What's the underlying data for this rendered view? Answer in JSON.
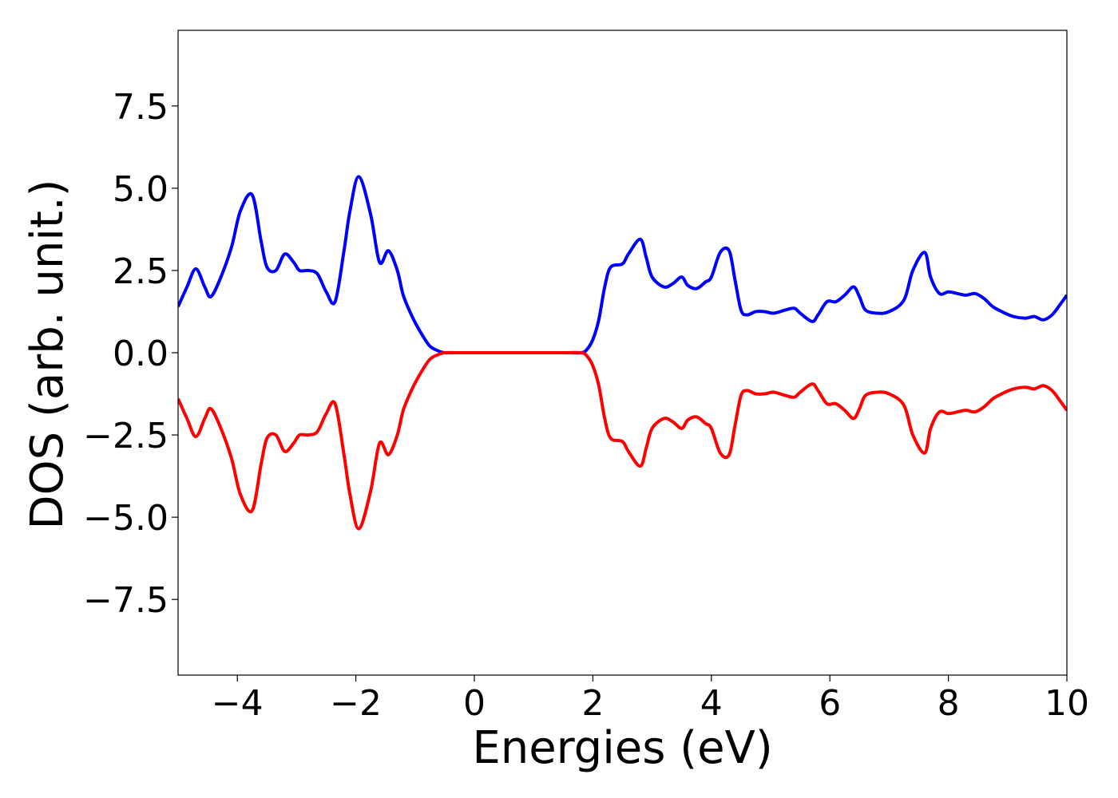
{
  "chart_data": {
    "type": "line",
    "title": "",
    "xlabel": "Energies (eV)",
    "ylabel": "DOS (arb. unit.)",
    "xlim": [
      -5,
      10
    ],
    "ylim": [
      -9.8,
      9.8
    ],
    "xticks": [
      -4,
      -2,
      0,
      2,
      4,
      6,
      8,
      10
    ],
    "yticks": [
      -7.5,
      -5.0,
      -2.5,
      0.0,
      2.5,
      5.0,
      7.5
    ],
    "xtick_labels": [
      "−4",
      "−2",
      "0",
      "2",
      "4",
      "6",
      "8",
      "10"
    ],
    "ytick_labels": [
      "−7.5",
      "−5.0",
      "−2.5",
      "0.0",
      "2.5",
      "5.0",
      "7.5"
    ],
    "grid": false,
    "legend": "none",
    "series": [
      {
        "color": "#0000ff",
        "x": [
          -5.0,
          -4.85,
          -4.7,
          -4.55,
          -4.45,
          -4.3,
          -4.1,
          -3.95,
          -3.75,
          -3.6,
          -3.5,
          -3.35,
          -3.2,
          -3.05,
          -2.95,
          -2.8,
          -2.65,
          -2.5,
          -2.35,
          -2.2,
          -2.1,
          -1.95,
          -1.75,
          -1.6,
          -1.45,
          -1.3,
          -1.2,
          -1.05,
          -0.9,
          -0.75,
          -0.6,
          -0.5,
          -0.3,
          0.0,
          0.5,
          1.0,
          1.5,
          1.8,
          1.9,
          2.0,
          2.1,
          2.2,
          2.3,
          2.5,
          2.6,
          2.8,
          2.9,
          3.0,
          3.2,
          3.35,
          3.5,
          3.6,
          3.75,
          3.9,
          4.0,
          4.15,
          4.3,
          4.4,
          4.5,
          4.6,
          4.75,
          4.9,
          5.05,
          5.25,
          5.4,
          5.5,
          5.7,
          5.8,
          5.95,
          6.1,
          6.25,
          6.4,
          6.5,
          6.6,
          6.8,
          7.0,
          7.25,
          7.4,
          7.6,
          7.7,
          7.85,
          8.0,
          8.15,
          8.3,
          8.45,
          8.6,
          8.75,
          8.9,
          9.1,
          9.3,
          9.45,
          9.6,
          9.75,
          9.9,
          10.0
        ],
        "values": [
          1.4,
          2.0,
          2.55,
          2.0,
          1.7,
          2.2,
          3.2,
          4.3,
          4.8,
          3.4,
          2.6,
          2.5,
          3.0,
          2.75,
          2.5,
          2.5,
          2.4,
          1.85,
          1.55,
          3.1,
          4.3,
          5.35,
          4.2,
          2.75,
          3.1,
          2.5,
          1.75,
          1.1,
          0.6,
          0.2,
          0.05,
          0.0,
          0.0,
          0.0,
          0.0,
          0.0,
          0.0,
          0.0,
          0.1,
          0.4,
          1.0,
          2.0,
          2.6,
          2.7,
          3.0,
          3.45,
          2.9,
          2.3,
          2.0,
          2.1,
          2.3,
          2.05,
          1.95,
          2.15,
          2.3,
          3.05,
          3.1,
          2.2,
          1.3,
          1.15,
          1.25,
          1.25,
          1.2,
          1.3,
          1.35,
          1.2,
          0.95,
          1.15,
          1.55,
          1.55,
          1.75,
          2.0,
          1.7,
          1.3,
          1.2,
          1.25,
          1.6,
          2.5,
          3.05,
          2.3,
          1.8,
          1.85,
          1.8,
          1.75,
          1.8,
          1.65,
          1.4,
          1.25,
          1.1,
          1.05,
          1.1,
          1.0,
          1.15,
          1.5,
          1.75
        ]
      },
      {
        "color": "#ff0000",
        "x": [
          -5.0,
          -4.85,
          -4.7,
          -4.55,
          -4.45,
          -4.3,
          -4.1,
          -3.95,
          -3.75,
          -3.6,
          -3.5,
          -3.35,
          -3.2,
          -3.05,
          -2.95,
          -2.8,
          -2.65,
          -2.5,
          -2.35,
          -2.2,
          -2.1,
          -1.95,
          -1.75,
          -1.6,
          -1.45,
          -1.3,
          -1.2,
          -1.05,
          -0.9,
          -0.75,
          -0.6,
          -0.5,
          -0.3,
          0.0,
          0.5,
          1.0,
          1.5,
          1.8,
          1.9,
          2.0,
          2.1,
          2.2,
          2.3,
          2.5,
          2.6,
          2.8,
          2.9,
          3.0,
          3.2,
          3.35,
          3.5,
          3.6,
          3.75,
          3.9,
          4.0,
          4.15,
          4.3,
          4.4,
          4.5,
          4.6,
          4.75,
          4.9,
          5.05,
          5.25,
          5.4,
          5.5,
          5.7,
          5.8,
          5.95,
          6.1,
          6.25,
          6.4,
          6.5,
          6.6,
          6.8,
          7.0,
          7.25,
          7.4,
          7.6,
          7.7,
          7.85,
          8.0,
          8.15,
          8.3,
          8.45,
          8.6,
          8.75,
          8.9,
          9.1,
          9.3,
          9.45,
          9.6,
          9.75,
          9.9,
          10.0
        ],
        "values": [
          -1.4,
          -2.0,
          -2.55,
          -2.0,
          -1.7,
          -2.2,
          -3.2,
          -4.3,
          -4.8,
          -3.4,
          -2.6,
          -2.5,
          -3.0,
          -2.75,
          -2.5,
          -2.5,
          -2.4,
          -1.85,
          -1.55,
          -3.1,
          -4.3,
          -5.35,
          -4.2,
          -2.75,
          -3.1,
          -2.5,
          -1.75,
          -1.1,
          -0.6,
          -0.2,
          -0.05,
          0.0,
          0.0,
          0.0,
          0.0,
          0.0,
          0.0,
          0.0,
          -0.1,
          -0.4,
          -1.0,
          -2.0,
          -2.6,
          -2.7,
          -3.0,
          -3.45,
          -2.9,
          -2.3,
          -2.0,
          -2.1,
          -2.3,
          -2.05,
          -1.95,
          -2.15,
          -2.3,
          -3.05,
          -3.1,
          -2.2,
          -1.3,
          -1.15,
          -1.25,
          -1.25,
          -1.2,
          -1.3,
          -1.35,
          -1.2,
          -0.95,
          -1.15,
          -1.55,
          -1.55,
          -1.75,
          -2.0,
          -1.7,
          -1.3,
          -1.2,
          -1.25,
          -1.6,
          -2.5,
          -3.05,
          -2.3,
          -1.8,
          -1.85,
          -1.8,
          -1.75,
          -1.8,
          -1.65,
          -1.4,
          -1.25,
          -1.1,
          -1.05,
          -1.1,
          -1.0,
          -1.15,
          -1.5,
          -1.75
        ]
      }
    ]
  }
}
